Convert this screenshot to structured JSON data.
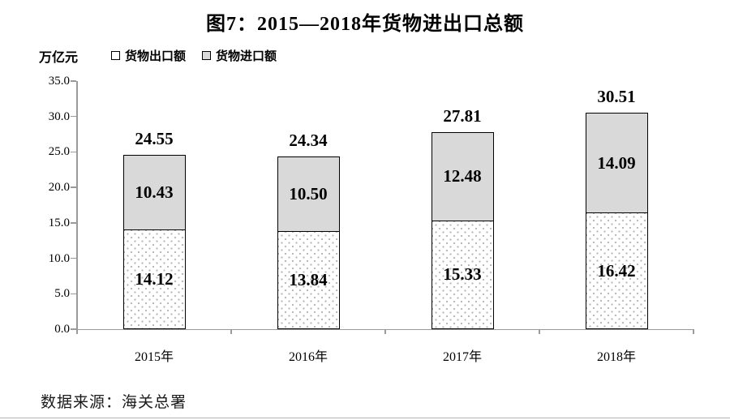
{
  "figure": {
    "title": "图7：2015—2018年货物进出口总额",
    "unit_label": "万亿元",
    "source": "数据来源：海关总署"
  },
  "chart_data": {
    "type": "bar",
    "stacked": true,
    "title": "图7：2015—2018年货物进出口总额",
    "ylabel": "万亿元",
    "categories": [
      "2015年",
      "2016年",
      "2017年",
      "2018年"
    ],
    "series": [
      {
        "name": "货物出口额",
        "values": [
          14.12,
          13.84,
          15.33,
          16.42
        ],
        "style": "dotted-white",
        "color": "#ffffff"
      },
      {
        "name": "货物进口额",
        "values": [
          10.43,
          10.5,
          12.48,
          14.09
        ],
        "style": "solid-gray",
        "color": "#d9d9d9"
      }
    ],
    "totals": [
      24.55,
      24.34,
      27.81,
      30.51
    ],
    "ylim": [
      0,
      35
    ],
    "ytick_step": 5,
    "ytick_labels": [
      "0.0",
      "5.0",
      "10.0",
      "15.0",
      "20.0",
      "25.0",
      "30.0",
      "35.0"
    ],
    "grid": false,
    "legend_position": "top-left",
    "axis_color": "#9a9a9a",
    "bar_border_color": "#000000"
  }
}
